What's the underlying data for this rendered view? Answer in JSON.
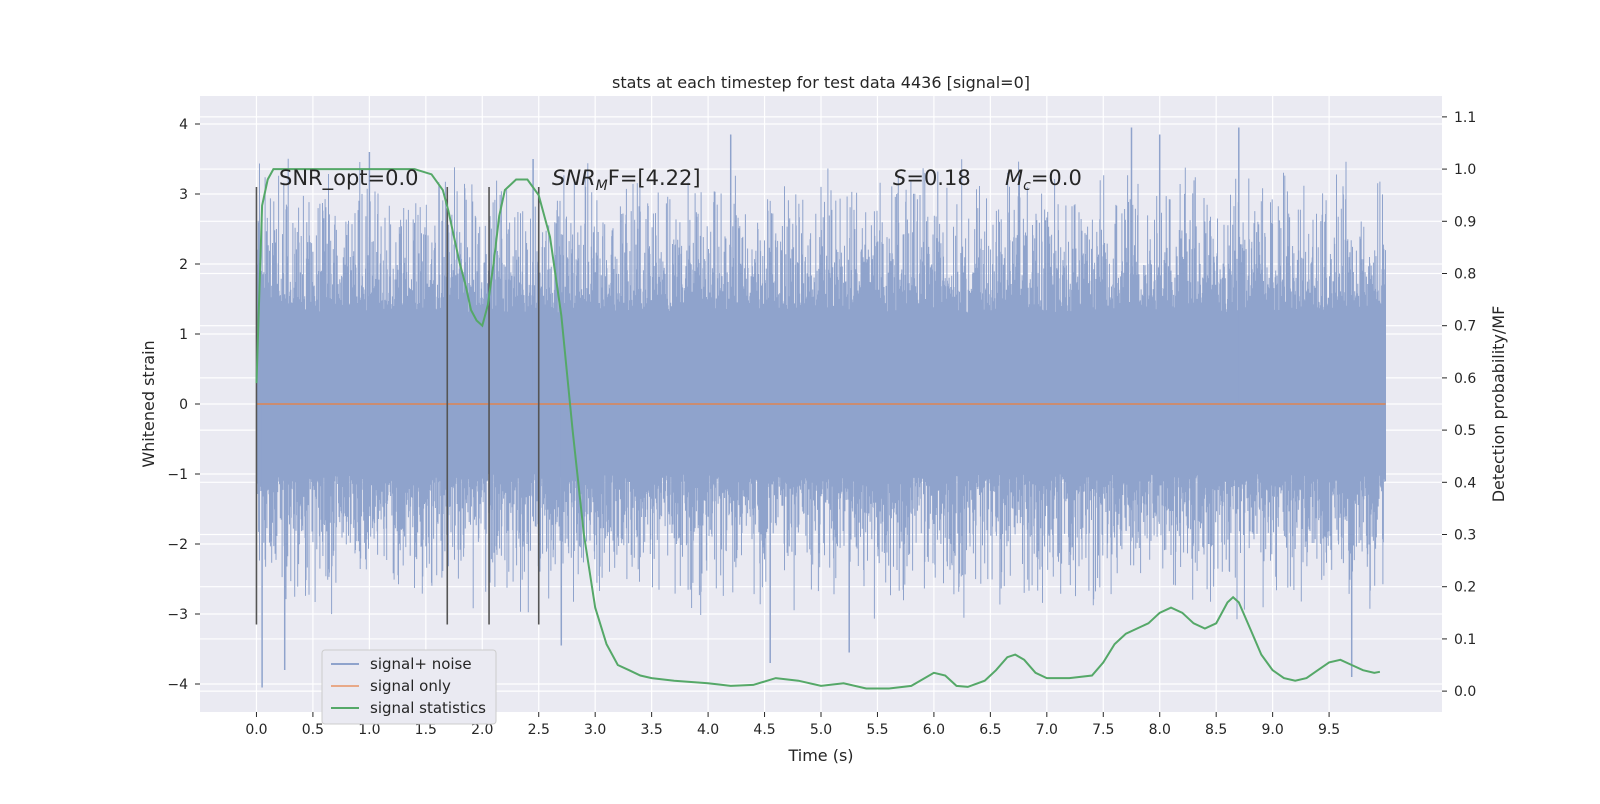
{
  "chart_data": {
    "type": "line",
    "title": "stats at each timestep for test data 4436 [signal=0]",
    "xlabel": "Time (s)",
    "ylabel": "Whitened strain",
    "ylabel_right": "Detection probability/MF",
    "xlim": [
      -0.5,
      10.5
    ],
    "ylim": [
      -4.4,
      4.4
    ],
    "ylim_right": [
      -0.04,
      1.14
    ],
    "x_ticks": [
      "0.0",
      "0.5",
      "1.0",
      "1.5",
      "2.0",
      "2.5",
      "3.0",
      "3.5",
      "4.0",
      "4.5",
      "5.0",
      "5.5",
      "6.0",
      "6.5",
      "7.0",
      "7.5",
      "8.0",
      "8.5",
      "9.0",
      "9.5"
    ],
    "y_ticks": [
      "4",
      "3",
      "2",
      "1",
      "0",
      "−1",
      "−2",
      "−3",
      "−4"
    ],
    "y_ticks_right": [
      "1.1",
      "1.0",
      "0.9",
      "0.8",
      "0.7",
      "0.6",
      "0.5",
      "0.4",
      "0.3",
      "0.2",
      "0.1",
      "0.0"
    ],
    "grid": true,
    "legend_placement": "lower-left",
    "annotations": {
      "snr_opt": "SNR_opt=0.0",
      "snr_mf_italic": "SNR",
      "snr_mf_sub": "M",
      "snr_mf_rest": "F=[4.22]",
      "s_italic": "S",
      "s_rest": "=0.18",
      "mc_italic": "M",
      "mc_sub": "c",
      "mc_rest": "=0.0"
    },
    "vertical_markers_x": [
      0.0,
      1.69,
      2.06,
      2.5
    ],
    "series": [
      {
        "name": "signal+ noise",
        "color": "#8fa3cc",
        "x_range": [
          0.0,
          10.0
        ],
        "envelope_core": [
          -1.0,
          1.3
        ],
        "extreme_peaks": [
          {
            "x": 1.0,
            "y": 3.6
          },
          {
            "x": 2.45,
            "y": 3.5
          },
          {
            "x": 4.2,
            "y": 3.85
          },
          {
            "x": 7.75,
            "y": 3.95
          },
          {
            "x": 8.0,
            "y": 3.85
          },
          {
            "x": 8.7,
            "y": 3.95
          },
          {
            "x": 0.05,
            "y": -4.05
          },
          {
            "x": 0.25,
            "y": -3.8
          },
          {
            "x": 2.7,
            "y": -3.45
          },
          {
            "x": 4.55,
            "y": -3.7
          },
          {
            "x": 5.25,
            "y": -3.55
          },
          {
            "x": 9.7,
            "y": -3.9
          }
        ]
      },
      {
        "name": "signal only",
        "color": "#dd8452",
        "x": [
          0.0,
          10.0
        ],
        "y": [
          0.0,
          0.0
        ]
      },
      {
        "name": "signal statistics",
        "color": "#55a868",
        "axis": "right",
        "x": [
          0.0,
          0.05,
          0.1,
          0.15,
          0.25,
          0.5,
          1.0,
          1.4,
          1.55,
          1.65,
          1.7,
          1.75,
          1.8,
          1.85,
          1.9,
          1.95,
          2.0,
          2.05,
          2.1,
          2.15,
          2.2,
          2.3,
          2.4,
          2.5,
          2.6,
          2.7,
          2.8,
          2.9,
          3.0,
          3.1,
          3.2,
          3.3,
          3.4,
          3.5,
          3.7,
          4.0,
          4.2,
          4.4,
          4.6,
          4.8,
          5.0,
          5.2,
          5.4,
          5.6,
          5.8,
          6.0,
          6.1,
          6.2,
          6.3,
          6.45,
          6.55,
          6.65,
          6.72,
          6.8,
          6.9,
          7.0,
          7.2,
          7.4,
          7.5,
          7.6,
          7.7,
          7.8,
          7.9,
          8.0,
          8.1,
          8.2,
          8.3,
          8.4,
          8.5,
          8.6,
          8.65,
          8.7,
          8.8,
          8.9,
          9.0,
          9.1,
          9.2,
          9.3,
          9.4,
          9.5,
          9.6,
          9.7,
          9.8,
          9.9,
          9.95
        ],
        "y": [
          0.59,
          0.93,
          0.98,
          1.0,
          1.0,
          1.0,
          1.0,
          1.0,
          0.99,
          0.96,
          0.92,
          0.87,
          0.82,
          0.78,
          0.73,
          0.71,
          0.7,
          0.74,
          0.82,
          0.91,
          0.96,
          0.98,
          0.98,
          0.95,
          0.87,
          0.72,
          0.5,
          0.3,
          0.16,
          0.09,
          0.05,
          0.04,
          0.03,
          0.025,
          0.02,
          0.015,
          0.01,
          0.012,
          0.025,
          0.02,
          0.01,
          0.015,
          0.005,
          0.005,
          0.01,
          0.035,
          0.03,
          0.01,
          0.008,
          0.02,
          0.04,
          0.065,
          0.07,
          0.06,
          0.035,
          0.025,
          0.025,
          0.03,
          0.055,
          0.09,
          0.11,
          0.12,
          0.13,
          0.15,
          0.16,
          0.15,
          0.13,
          0.12,
          0.13,
          0.17,
          0.18,
          0.17,
          0.12,
          0.07,
          0.04,
          0.025,
          0.02,
          0.025,
          0.04,
          0.055,
          0.06,
          0.05,
          0.04,
          0.035,
          0.037
        ]
      }
    ]
  }
}
